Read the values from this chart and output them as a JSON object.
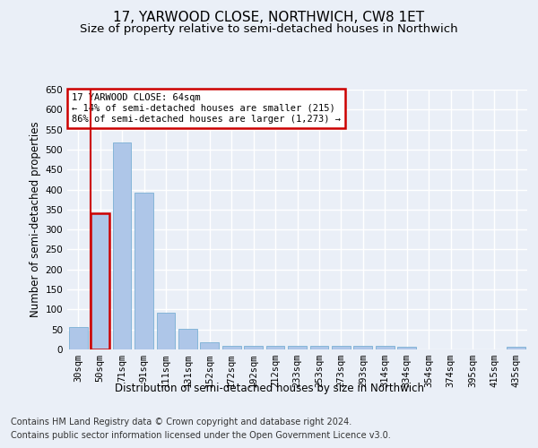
{
  "title_line1": "17, YARWOOD CLOSE, NORTHWICH, CW8 1ET",
  "title_line2": "Size of property relative to semi-detached houses in Northwich",
  "xlabel": "Distribution of semi-detached houses by size in Northwich",
  "ylabel": "Number of semi-detached properties",
  "footer_line1": "Contains HM Land Registry data © Crown copyright and database right 2024.",
  "footer_line2": "Contains public sector information licensed under the Open Government Licence v3.0.",
  "categories": [
    "30sqm",
    "50sqm",
    "71sqm",
    "91sqm",
    "111sqm",
    "131sqm",
    "152sqm",
    "172sqm",
    "192sqm",
    "212sqm",
    "233sqm",
    "253sqm",
    "273sqm",
    "293sqm",
    "314sqm",
    "334sqm",
    "354sqm",
    "374sqm",
    "395sqm",
    "415sqm",
    "435sqm"
  ],
  "values": [
    57,
    340,
    518,
    392,
    93,
    51,
    19,
    8,
    10,
    8,
    9,
    9,
    8,
    8,
    9,
    6,
    0,
    0,
    0,
    0,
    6
  ],
  "bar_color": "#aec6e8",
  "bar_edge_color": "#7aafd4",
  "highlight_bar_index": 1,
  "annotation_text": "17 YARWOOD CLOSE: 64sqm\n← 14% of semi-detached houses are smaller (215)\n86% of semi-detached houses are larger (1,273) →",
  "annotation_box_color": "#ffffff",
  "annotation_box_edge_color": "#cc0000",
  "red_line_x": 0.5,
  "ylim": [
    0,
    650
  ],
  "yticks": [
    0,
    50,
    100,
    150,
    200,
    250,
    300,
    350,
    400,
    450,
    500,
    550,
    600,
    650
  ],
  "bg_color": "#eaeff7",
  "plot_bg_color": "#eaeff7",
  "grid_color": "#ffffff",
  "title1_fontsize": 11,
  "title2_fontsize": 9.5,
  "axis_label_fontsize": 8.5,
  "tick_fontsize": 7.5,
  "footer_fontsize": 7
}
